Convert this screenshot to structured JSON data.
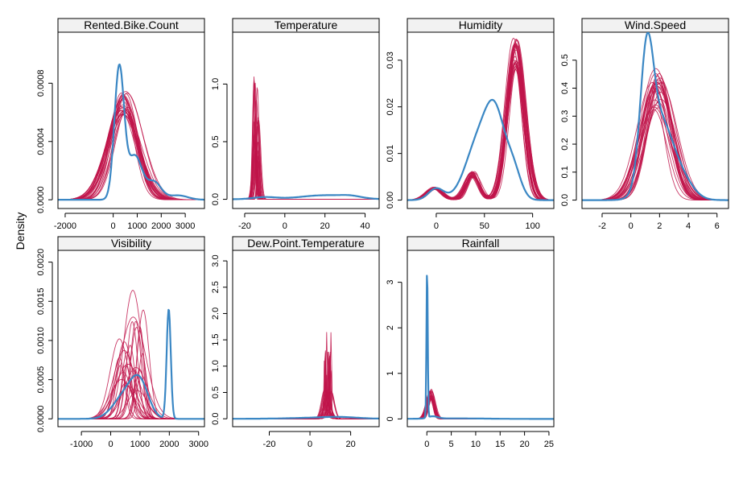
{
  "ylabel": "Density",
  "colors": {
    "observed": "#3a87c4",
    "imputed": "#c0144a"
  },
  "chart_data": [
    {
      "type": "line",
      "title": "Rented.Bike.Count",
      "xlim": [
        -2300,
        3800
      ],
      "ylim": [
        -6e-05,
        0.00115
      ],
      "xticks": [
        -2000,
        0,
        1000,
        2000,
        3000
      ],
      "xtick_labels": [
        "-2000",
        "0",
        "1000",
        "2000",
        "3000"
      ],
      "yticks": [
        0.0,
        0.0004,
        0.0008
      ],
      "ytick_labels": [
        "0.0000",
        "0.0004",
        "0.0008"
      ],
      "observed": {
        "comps": [
          [
            0.0009,
            250,
            200
          ],
          [
            0.0003,
            900,
            300
          ],
          [
            0.00012,
            1700,
            300
          ],
          [
            3e-05,
            2700,
            400
          ]
        ]
      },
      "imputed": {
        "n": 25,
        "comps": [
          [
            0.00068,
            450,
            600
          ]
        ],
        "hjit": 0.15,
        "mjit": 150,
        "sjit": 120,
        "seed": 11
      }
    },
    {
      "type": "line",
      "title": "Temperature",
      "xlim": [
        -26,
        47
      ],
      "ylim": [
        -0.08,
        1.45
      ],
      "xticks": [
        -20,
        0,
        20,
        40
      ],
      "xtick_labels": [
        "-20",
        "0",
        "20",
        "40"
      ],
      "yticks": [
        0.0,
        0.5,
        1.0
      ],
      "ytick_labels": [
        "0.0",
        "0.5",
        "1.0"
      ],
      "observed": {
        "comps": [
          [
            0.018,
            -10,
            6
          ],
          [
            0.035,
            20,
            12
          ],
          [
            0.015,
            33,
            5
          ]
        ]
      },
      "imputed": {
        "n": 25,
        "comps": [
          [
            0.7,
            -14,
            0.8
          ]
        ],
        "hjit": 0.55,
        "mjit": 1.5,
        "sjit": 0.4,
        "seed": 23
      }
    },
    {
      "type": "line",
      "title": "Humidity",
      "xlim": [
        -30,
        122
      ],
      "ylim": [
        -0.0018,
        0.036
      ],
      "xticks": [
        0,
        50,
        100
      ],
      "xtick_labels": [
        "0",
        "50",
        "100"
      ],
      "yticks": [
        0.0,
        0.01,
        0.02,
        0.03
      ],
      "ytick_labels": [
        "0.00",
        "0.01",
        "0.02",
        "0.03"
      ],
      "observed": {
        "comps": [
          [
            0.0025,
            0,
            8
          ],
          [
            0.013,
            45,
            14
          ],
          [
            0.014,
            62,
            10
          ],
          [
            0.006,
            80,
            8
          ]
        ]
      },
      "imputed": {
        "n": 25,
        "comps": [
          [
            0.0025,
            -2,
            8
          ],
          [
            0.0055,
            38,
            7
          ],
          [
            0.031,
            82,
            9
          ]
        ],
        "hjit": 0.12,
        "mjit": 2,
        "sjit": 1.2,
        "seed": 37
      }
    },
    {
      "type": "line",
      "title": "Wind.Speed",
      "xlim": [
        -3.4,
        6.8
      ],
      "ylim": [
        -0.03,
        0.6
      ],
      "xticks": [
        -2,
        0,
        2,
        4,
        6
      ],
      "xtick_labels": [
        "-2",
        "0",
        "2",
        "4",
        "6"
      ],
      "yticks": [
        0.0,
        0.1,
        0.2,
        0.3,
        0.4,
        0.5
      ],
      "ytick_labels": [
        "0.0",
        "0.1",
        "0.2",
        "0.3",
        "0.4",
        "0.5"
      ],
      "observed": {
        "comps": [
          [
            0.42,
            1.1,
            0.45
          ],
          [
            0.28,
            2.0,
            0.9
          ],
          [
            0.06,
            3.6,
            0.8
          ]
        ]
      },
      "imputed": {
        "n": 25,
        "comps": [
          [
            0.4,
            1.8,
            0.95
          ]
        ],
        "hjit": 0.2,
        "mjit": 0.3,
        "sjit": 0.2,
        "seed": 41
      }
    },
    {
      "type": "line",
      "title": "Visibility",
      "xlim": [
        -1800,
        3200
      ],
      "ylim": [
        -0.0001,
        0.00215
      ],
      "xticks": [
        -1000,
        0,
        1000,
        2000,
        3000
      ],
      "xtick_labels": [
        "-1000",
        "0",
        "1000",
        "2000",
        "3000"
      ],
      "yticks": [
        0.0,
        0.0005,
        0.001,
        0.0015,
        0.002
      ],
      "ytick_labels": [
        "0.0000",
        "0.0005",
        "0.0010",
        "0.0015",
        "0.0020"
      ],
      "observed": {
        "comps": [
          [
            0.0003,
            500,
            400
          ],
          [
            0.0004,
            1000,
            300
          ],
          [
            0.0014,
            1980,
            70
          ]
        ]
      },
      "imputed": {
        "n": 25,
        "comps": [
          [
            0.001,
            700,
            300
          ]
        ],
        "hjit": 0.65,
        "mjit": 450,
        "sjit": 180,
        "seed": 53
      }
    },
    {
      "type": "line",
      "title": "Dew.Point.Temperature",
      "xlim": [
        -38,
        34
      ],
      "ylim": [
        -0.15,
        3.2
      ],
      "xticks": [
        -20,
        0,
        20
      ],
      "xtick_labels": [
        "-20",
        "0",
        "20"
      ],
      "yticks": [
        0.0,
        0.5,
        1.0,
        1.5,
        2.0,
        2.5,
        3.0
      ],
      "ytick_labels": [
        "0.0",
        "0.5",
        "1.0",
        "1.5",
        "2.0",
        "2.5",
        "3.0"
      ],
      "observed": {
        "comps": [
          [
            0.02,
            5,
            14
          ],
          [
            0.02,
            15,
            8
          ]
        ]
      },
      "imputed": {
        "n": 25,
        "comps": [
          [
            0.3,
            9,
            1.6
          ],
          [
            0.7,
            8.6,
            0.25
          ]
        ],
        "hjit": 0.85,
        "mjit": 2,
        "sjit": 0.08,
        "seed": 67
      }
    },
    {
      "type": "line",
      "title": "Rainfall",
      "xlim": [
        -4,
        26
      ],
      "ylim": [
        -0.17,
        3.7
      ],
      "xticks": [
        0,
        5,
        10,
        15,
        20,
        25
      ],
      "xtick_labels": [
        "0",
        "5",
        "10",
        "15",
        "20",
        "25"
      ],
      "yticks": [
        0,
        1,
        2,
        3
      ],
      "ytick_labels": [
        "0",
        "1",
        "2",
        "3"
      ],
      "observed": {
        "comps": [
          [
            3.35,
            0.05,
            0.13
          ],
          [
            0.05,
            1.2,
            1.0
          ],
          [
            0.012,
            6,
            6
          ]
        ]
      },
      "imputed": {
        "n": 25,
        "comps": [
          [
            0.55,
            0.8,
            0.7
          ]
        ],
        "hjit": 0.2,
        "mjit": 0.3,
        "sjit": 0.15,
        "seed": 79
      }
    }
  ]
}
